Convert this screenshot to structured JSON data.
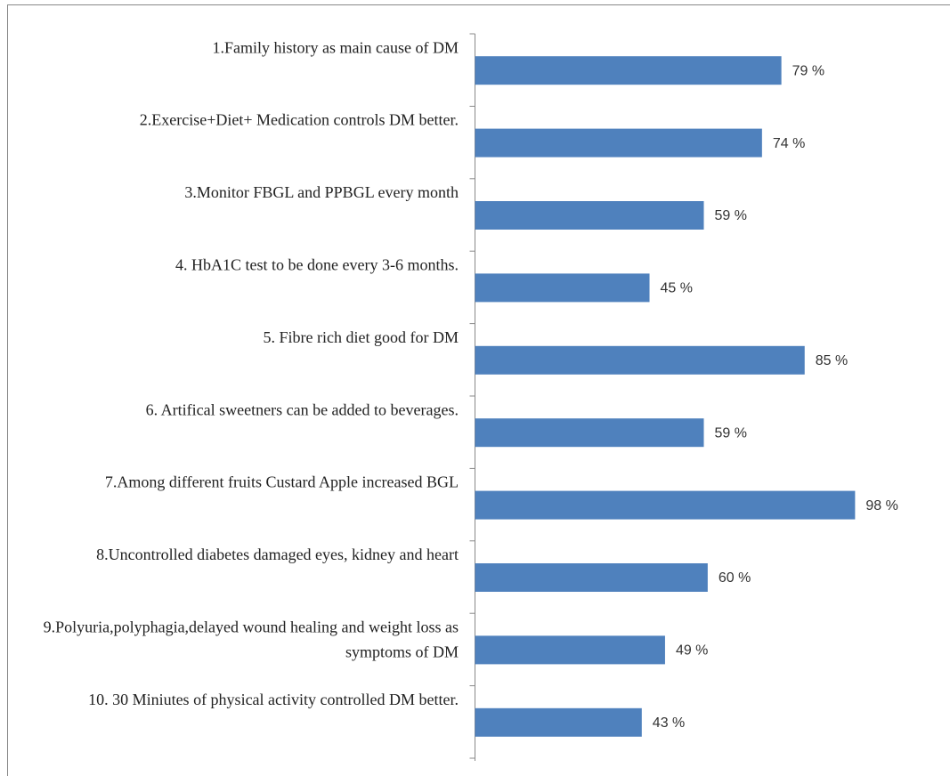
{
  "chart_data": {
    "type": "barh",
    "categories": [
      "1.Family history as main cause of DM",
      "2.Exercise+Diet+ Medication  controls DM better.",
      "3.Monitor FBGL and PPBGL  every month",
      "4. HbA1C test to be done every 3-6 months.",
      "5.  Fibre rich diet good for DM",
      "6.  Artifical sweetners  can be added to beverages.",
      "7.Among different fruits Custard Apple increased BGL",
      "8.Uncontrolled diabetes damaged eyes, kidney and heart",
      "9.Polyuria,polyphagia,delayed wound healing and weight loss as symptoms of DM",
      "10. 30 Miniutes of  physical activity controlled  DM better."
    ],
    "values": [
      79,
      74,
      59,
      45,
      85,
      59,
      98,
      60,
      49,
      43
    ],
    "value_labels": [
      "79 %",
      "74 %",
      "59 %",
      "45 %",
      "85 %",
      "59 %",
      "98 %",
      "60 %",
      "49 %",
      "43 %"
    ],
    "color": "#4f81bd",
    "xlim": [
      0,
      100
    ]
  }
}
